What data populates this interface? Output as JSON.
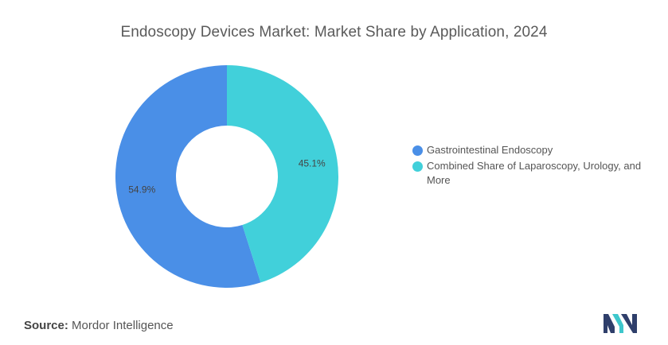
{
  "title": "Endoscopy Devices Market: Market Share by Application, 2024",
  "source": {
    "label": "Source:",
    "text": "Mordor Intelligence"
  },
  "logo": {
    "icon": "mordor-intelligence-logo-icon",
    "colors": [
      "#2f3f6b",
      "#3ec7cc"
    ]
  },
  "chart_data": {
    "type": "pie",
    "variant": "donut",
    "categories": [
      "Gastrointestinal Endoscopy",
      "Combined Share of Laparoscopy, Urology, and More"
    ],
    "values": [
      54.9,
      45.1
    ],
    "value_labels": [
      "54.9%",
      "45.1%"
    ],
    "colors": [
      "#4a8fe7",
      "#41d0da"
    ],
    "start_angle_deg": 0,
    "direction": "counterclockwise",
    "legend_placement": "right",
    "title": "Endoscopy Devices Market: Market Share by Application, 2024"
  }
}
